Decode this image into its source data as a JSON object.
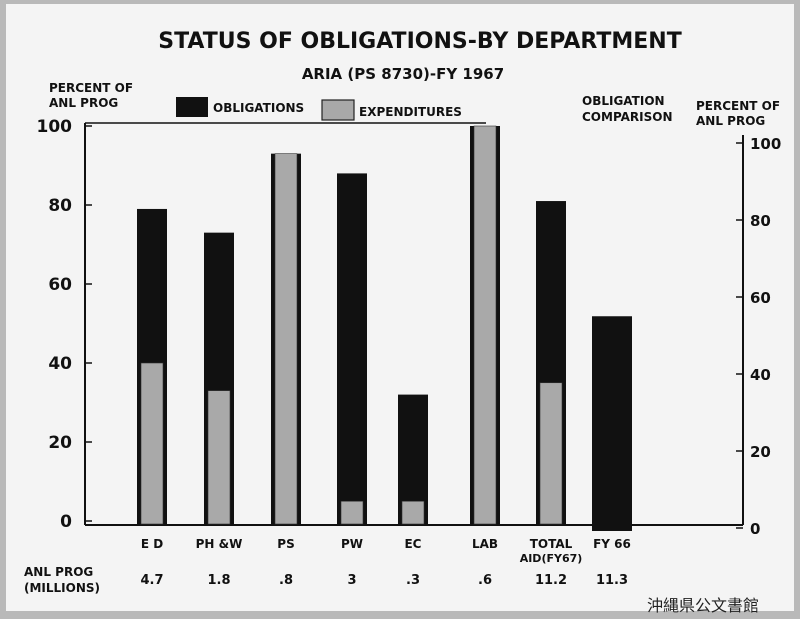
{
  "chart_data": {
    "type": "bar",
    "title": "STATUS OF OBLIGATIONS-BY DEPARTMENT",
    "subtitle": "ARIA (PS 8730)-FY 1967",
    "ylabel_left": [
      "PERCENT OF",
      "ANL PROG"
    ],
    "ylabel_right": [
      "PERCENT OF",
      "ANL PROG"
    ],
    "comparison_label": [
      "OBLIGATION",
      "COMPARISON"
    ],
    "ylim": [
      0,
      100
    ],
    "yticks_left": [
      0,
      20,
      40,
      60,
      80,
      100
    ],
    "yticks_right": [
      0,
      20,
      40,
      60,
      80,
      100
    ],
    "legend": [
      "OBLIGATIONS",
      "EXPENDITURES"
    ],
    "categories": [
      {
        "label": "E D",
        "label2": "",
        "anl_prog": "4.7"
      },
      {
        "label": "PH &W",
        "label2": "",
        "anl_prog": "1.8"
      },
      {
        "label": "PS",
        "label2": "",
        "anl_prog": ".8"
      },
      {
        "label": "PW",
        "label2": "",
        "anl_prog": "3"
      },
      {
        "label": "EC",
        "label2": "",
        "anl_prog": ".3"
      },
      {
        "label": "LAB",
        "label2": "",
        "anl_prog": ".6"
      },
      {
        "label": "TOTAL",
        "label2": "AID(FY67)",
        "anl_prog": "11.2"
      },
      {
        "label": "FY 66",
        "label2": "",
        "anl_prog": "11.3"
      }
    ],
    "series": [
      {
        "name": "OBLIGATIONS",
        "values": [
          79,
          73,
          93,
          88,
          32,
          100,
          81,
          55
        ]
      },
      {
        "name": "EXPENDITURES",
        "values": [
          40,
          33,
          93,
          5,
          5,
          100,
          35,
          0
        ]
      }
    ],
    "anl_prog_label": [
      "ANL PROG",
      "(MILLIONS)"
    ],
    "colors": {
      "obligations": "#111111",
      "expenditures": "#a9a9a9",
      "paper": "#f4f4f4"
    }
  },
  "archive_stamp": "沖縄県公文書館"
}
